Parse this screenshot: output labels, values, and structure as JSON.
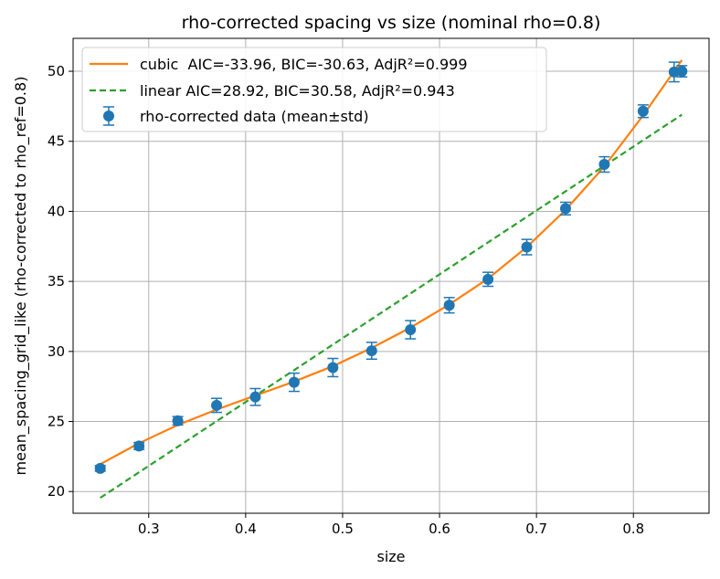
{
  "chart_data": {
    "type": "line",
    "title": "rho-corrected spacing vs size (nominal rho=0.8)",
    "xlabel": "size",
    "ylabel": "mean_spacing_grid_like (rho-corrected to rho_ref=0.8)",
    "xlim": [
      0.222,
      0.878
    ],
    "ylim": [
      18.45,
      52.35
    ],
    "xticks": [
      0.3,
      0.4,
      0.5,
      0.6,
      0.7,
      0.8
    ],
    "xtick_labels": [
      "0.3",
      "0.4",
      "0.5",
      "0.6",
      "0.7",
      "0.8"
    ],
    "yticks": [
      20,
      25,
      30,
      35,
      40,
      45,
      50
    ],
    "ytick_labels": [
      "20",
      "25",
      "30",
      "35",
      "40",
      "45",
      "50"
    ],
    "grid": true,
    "legend_position": "top-left",
    "legend": [
      "cubic  AIC=-33.96, BIC=-30.63, AdjR²=0.999",
      "linear AIC=28.92, BIC=30.58, AdjR²=0.943",
      "rho-corrected data (mean±std)"
    ],
    "colors": {
      "cubic": "#ff7f0e",
      "linear": "#2ca02c",
      "data": "#1f77b4"
    },
    "series": [
      {
        "kind": "line",
        "x": [
          0.25,
          0.29,
          0.33,
          0.37,
          0.41,
          0.45,
          0.49,
          0.53,
          0.57,
          0.61,
          0.65,
          0.69,
          0.73,
          0.77,
          0.81,
          0.85
        ],
        "y": [
          21.95,
          23.45,
          24.75,
          25.85,
          26.85,
          27.85,
          28.95,
          30.25,
          31.7,
          33.35,
          35.2,
          37.45,
          40.1,
          43.2,
          46.85,
          50.8
        ]
      },
      {
        "kind": "dashed-line",
        "x": [
          0.25,
          0.85
        ],
        "y": [
          19.55,
          46.9
        ]
      },
      {
        "kind": "errorbar",
        "x": [
          0.25,
          0.29,
          0.33,
          0.37,
          0.41,
          0.45,
          0.49,
          0.53,
          0.57,
          0.61,
          0.65,
          0.69,
          0.73,
          0.77,
          0.81,
          0.842,
          0.85
        ],
        "y": [
          21.65,
          23.25,
          25.05,
          26.15,
          26.75,
          27.8,
          28.85,
          30.05,
          31.55,
          33.3,
          35.15,
          37.45,
          40.2,
          43.35,
          47.15,
          49.95,
          50.0
        ],
        "err": [
          0.2,
          0.25,
          0.3,
          0.5,
          0.6,
          0.65,
          0.65,
          0.6,
          0.65,
          0.55,
          0.5,
          0.55,
          0.45,
          0.55,
          0.45,
          0.7,
          0.4
        ]
      }
    ]
  }
}
